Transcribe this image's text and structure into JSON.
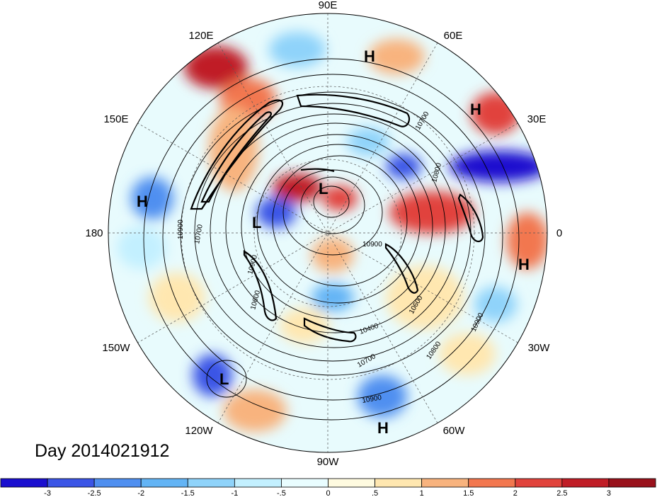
{
  "date_label": "Day 2014021912",
  "longitude_labels": [
    "90E",
    "60E",
    "30E",
    "0",
    "30W",
    "60W",
    "90W",
    "120W",
    "150W",
    "180",
    "150E",
    "120E"
  ],
  "pressure_systems": [
    "H",
    "H",
    "H",
    "H",
    "H",
    "L",
    "L",
    "L"
  ],
  "contour_labels": [
    "10700",
    "10800",
    "10900",
    "10700",
    "10900",
    "10900",
    "10600",
    "10400",
    "10700",
    "10800",
    "10900",
    "10900",
    "10600",
    "10900"
  ],
  "colorbar": {
    "ticks": [
      "-3",
      "-2.5",
      "-2",
      "-1.5",
      "-1",
      "-.5",
      "0",
      ".5",
      "1",
      "1.5",
      "2",
      "2.5",
      "3"
    ],
    "colors": [
      "#1a0fcf",
      "#3b55e6",
      "#4f8ff0",
      "#63b4f5",
      "#8fd3fa",
      "#c3f0ff",
      "#e9fdff",
      "#fffbe0",
      "#ffe7b0",
      "#f8b37e",
      "#f2774f",
      "#e1433c",
      "#c01d26",
      "#99121c"
    ]
  }
}
